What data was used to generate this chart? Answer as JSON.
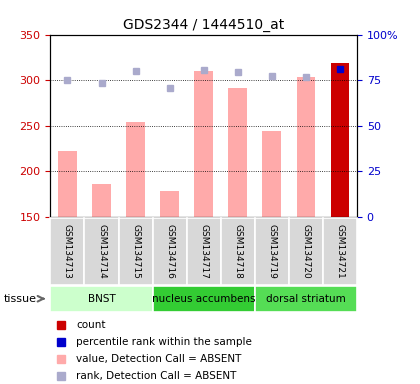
{
  "title": "GDS2344 / 1444510_at",
  "samples": [
    "GSM134713",
    "GSM134714",
    "GSM134715",
    "GSM134716",
    "GSM134717",
    "GSM134718",
    "GSM134719",
    "GSM134720",
    "GSM134721"
  ],
  "bar_values": [
    222,
    186,
    254,
    179,
    310,
    291,
    244,
    304,
    319
  ],
  "bar_colors": [
    "#ffaaaa",
    "#ffaaaa",
    "#ffaaaa",
    "#ffaaaa",
    "#ffaaaa",
    "#ffaaaa",
    "#ffaaaa",
    "#ffaaaa",
    "#cc0000"
  ],
  "rank_dots": [
    300,
    297,
    310,
    291,
    311,
    309,
    305,
    304,
    312
  ],
  "rank_dot_colors": [
    "#aaaacc",
    "#aaaacc",
    "#aaaacc",
    "#aaaacc",
    "#aaaacc",
    "#aaaacc",
    "#aaaacc",
    "#aaaacc",
    "#0000cc"
  ],
  "ylim_left": [
    150,
    350
  ],
  "ylim_right": [
    0,
    100
  ],
  "yticks_left": [
    150,
    200,
    250,
    300,
    350
  ],
  "yticks_right": [
    0,
    25,
    50,
    75,
    100
  ],
  "left_tick_color": "#cc0000",
  "right_tick_color": "#0000cc",
  "tissue_groups": [
    {
      "label": "BNST",
      "start": 0,
      "end": 3,
      "color": "#ccffcc"
    },
    {
      "label": "nucleus accumbens",
      "start": 3,
      "end": 6,
      "color": "#33cc33"
    },
    {
      "label": "dorsal striatum",
      "start": 6,
      "end": 9,
      "color": "#55dd55"
    }
  ],
  "tissue_label": "tissue",
  "legend_items": [
    {
      "color": "#cc0000",
      "label": "count"
    },
    {
      "color": "#0000cc",
      "label": "percentile rank within the sample"
    },
    {
      "color": "#ffaaaa",
      "label": "value, Detection Call = ABSENT"
    },
    {
      "color": "#aaaacc",
      "label": "rank, Detection Call = ABSENT"
    }
  ],
  "bar_bottom": 150
}
